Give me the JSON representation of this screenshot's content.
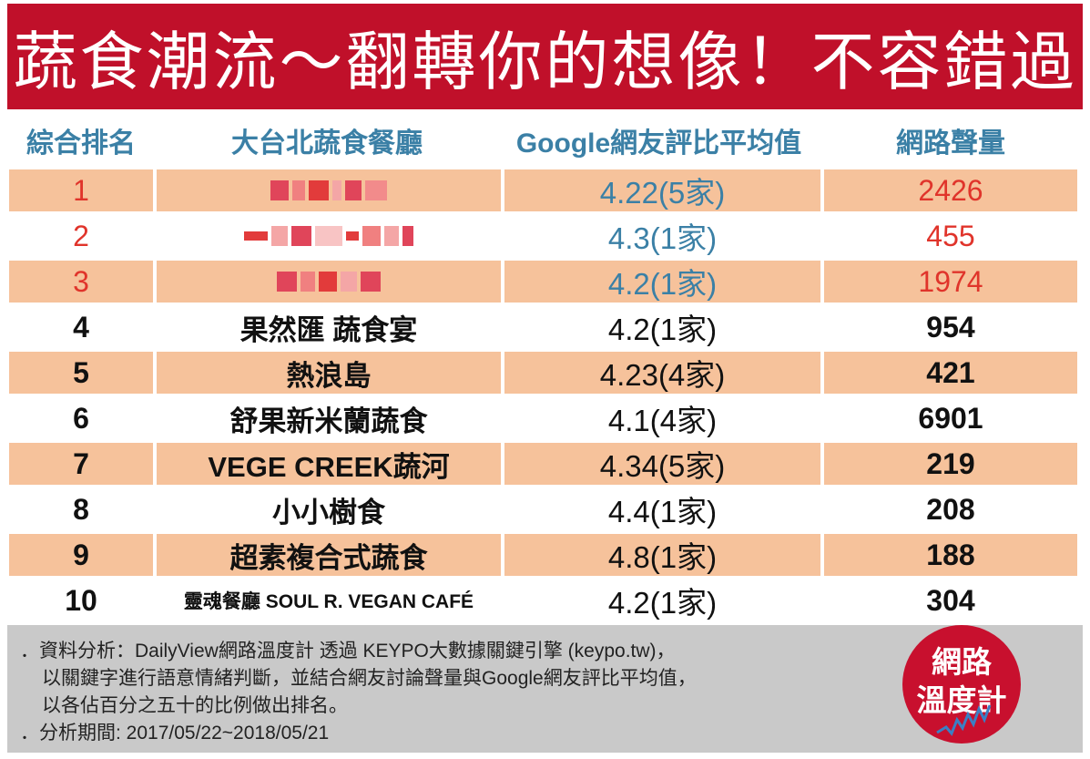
{
  "title": "蔬食潮流～翻轉你的想像！不容錯過",
  "columns": [
    "綜合排名",
    "大台北蔬食餐廳",
    "Google網友評比平均值",
    "網路聲量"
  ],
  "rows": [
    {
      "rank": "1",
      "name": "",
      "rating": "4.22(5家)",
      "volume": "2426"
    },
    {
      "rank": "2",
      "name": "",
      "rating": "4.3(1家)",
      "volume": "455"
    },
    {
      "rank": "3",
      "name": "",
      "rating": "4.2(1家)",
      "volume": "1974"
    },
    {
      "rank": "4",
      "name": "果然匯 蔬食宴",
      "rating": "4.2(1家)",
      "volume": "954"
    },
    {
      "rank": "5",
      "name": "熱浪島",
      "rating": "4.23(4家)",
      "volume": "421"
    },
    {
      "rank": "6",
      "name": "舒果新米蘭蔬食",
      "rating": "4.1(4家)",
      "volume": "6901"
    },
    {
      "rank": "7",
      "name": "VEGE CREEK蔬河",
      "rating": "4.34(5家)",
      "volume": "219"
    },
    {
      "rank": "8",
      "name": "小小樹食",
      "rating": "4.4(1家)",
      "volume": "208"
    },
    {
      "rank": "9",
      "name": "超素複合式蔬食",
      "rating": "4.8(1家)",
      "volume": "188"
    },
    {
      "rank": "10",
      "name": "靈魂餐廳 SOUL R. VEGAN CAFÉ",
      "rating": "4.2(1家)",
      "volume": "304"
    }
  ],
  "notes": {
    "line1": "．資料分析：DailyView網路溫度計 透過 KEYPO大數據關鍵引擎 (keypo.tw)，",
    "line2": "以關鍵字進行語意情緒判斷，並結合網友討論聲量與Google網友評比平均值，",
    "line3": "以各佔百分之五十的比例做出排名。",
    "line4": "．分析期間: 2017/05/22~2018/05/21"
  },
  "logo": {
    "line1": "網路",
    "line2": "溫度計"
  },
  "colors": {
    "banner": "#c0102a",
    "header_text": "#3b80a6",
    "row_highlight": "#f6c29b",
    "top_rank": "#e0342b",
    "footer": "#c9c9c9"
  }
}
